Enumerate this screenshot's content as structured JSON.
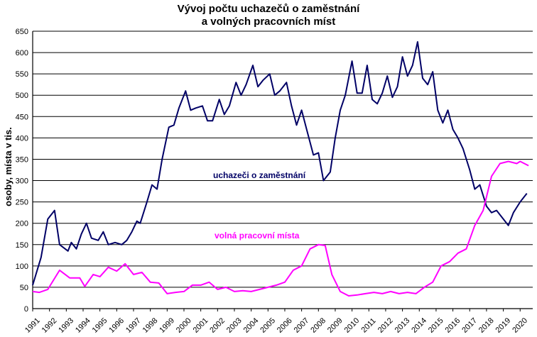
{
  "chart_data": {
    "type": "line",
    "title_line1": "Vývoj počtu uchazečů o zaměstnání",
    "title_line2": "a volných pracovních míst",
    "ylabel": "osoby, místa v tis.",
    "xlabel": "",
    "ylim": [
      0,
      650
    ],
    "yticks": [
      0,
      50,
      100,
      150,
      200,
      250,
      300,
      350,
      400,
      450,
      500,
      550,
      600,
      650
    ],
    "xlim": [
      1991,
      2020.75
    ],
    "years": [
      "1991",
      "1992",
      "1993",
      "1994",
      "1995",
      "1996",
      "1997",
      "1998",
      "1999",
      "2000",
      "2001",
      "2002",
      "2003",
      "2004",
      "2005",
      "2006",
      "2007",
      "2008",
      "2009",
      "2010",
      "2011",
      "2012",
      "2013",
      "2014",
      "2015",
      "2016",
      "2017",
      "2018",
      "2019",
      "2020"
    ],
    "grid": "horizontal",
    "series": [
      {
        "name": "uchazeči o zaměstnání",
        "color": "#000066",
        "points": [
          [
            1991,
            55
          ],
          [
            1991.5,
            120
          ],
          [
            1991.9,
            210
          ],
          [
            1992.3,
            230
          ],
          [
            1992.6,
            150
          ],
          [
            1993.1,
            135
          ],
          [
            1993.3,
            155
          ],
          [
            1993.6,
            140
          ],
          [
            1993.9,
            175
          ],
          [
            1994.2,
            200
          ],
          [
            1994.5,
            165
          ],
          [
            1994.9,
            160
          ],
          [
            1995.2,
            180
          ],
          [
            1995.5,
            150
          ],
          [
            1995.9,
            155
          ],
          [
            1996.3,
            150
          ],
          [
            1996.6,
            160
          ],
          [
            1996.9,
            180
          ],
          [
            1997.2,
            205
          ],
          [
            1997.4,
            200
          ],
          [
            1997.8,
            250
          ],
          [
            1998.1,
            290
          ],
          [
            1998.4,
            280
          ],
          [
            1998.7,
            350
          ],
          [
            1999.1,
            425
          ],
          [
            1999.4,
            430
          ],
          [
            1999.7,
            470
          ],
          [
            2000.1,
            510
          ],
          [
            2000.4,
            465
          ],
          [
            2000.7,
            470
          ],
          [
            2001.1,
            475
          ],
          [
            2001.4,
            440
          ],
          [
            2001.7,
            440
          ],
          [
            2002.1,
            490
          ],
          [
            2002.4,
            455
          ],
          [
            2002.7,
            475
          ],
          [
            2003.1,
            530
          ],
          [
            2003.4,
            500
          ],
          [
            2003.7,
            525
          ],
          [
            2004.1,
            570
          ],
          [
            2004.4,
            520
          ],
          [
            2004.7,
            535
          ],
          [
            2005.1,
            550
          ],
          [
            2005.4,
            500
          ],
          [
            2005.7,
            510
          ],
          [
            2006.1,
            530
          ],
          [
            2006.4,
            475
          ],
          [
            2006.7,
            430
          ],
          [
            2007.0,
            465
          ],
          [
            2007.3,
            420
          ],
          [
            2007.7,
            360
          ],
          [
            2008.0,
            365
          ],
          [
            2008.3,
            300
          ],
          [
            2008.7,
            320
          ],
          [
            2009.0,
            400
          ],
          [
            2009.3,
            465
          ],
          [
            2009.6,
            500
          ],
          [
            2010.0,
            580
          ],
          [
            2010.3,
            505
          ],
          [
            2010.6,
            505
          ],
          [
            2010.9,
            570
          ],
          [
            2011.2,
            490
          ],
          [
            2011.5,
            480
          ],
          [
            2011.8,
            505
          ],
          [
            2012.1,
            545
          ],
          [
            2012.4,
            495
          ],
          [
            2012.7,
            520
          ],
          [
            2013.0,
            590
          ],
          [
            2013.3,
            545
          ],
          [
            2013.6,
            570
          ],
          [
            2013.9,
            625
          ],
          [
            2014.2,
            540
          ],
          [
            2014.5,
            525
          ],
          [
            2014.8,
            555
          ],
          [
            2015.1,
            465
          ],
          [
            2015.4,
            435
          ],
          [
            2015.7,
            465
          ],
          [
            2016.0,
            420
          ],
          [
            2016.3,
            400
          ],
          [
            2016.6,
            375
          ],
          [
            2017.0,
            325
          ],
          [
            2017.3,
            280
          ],
          [
            2017.6,
            290
          ],
          [
            2018.0,
            240
          ],
          [
            2018.3,
            225
          ],
          [
            2018.6,
            230
          ],
          [
            2019.0,
            210
          ],
          [
            2019.3,
            195
          ],
          [
            2019.6,
            225
          ],
          [
            2020.0,
            250
          ],
          [
            2020.4,
            270
          ]
        ]
      },
      {
        "name": "volná pracovní místa",
        "color": "#ff00ff",
        "points": [
          [
            1991,
            40
          ],
          [
            1991.4,
            38
          ],
          [
            1991.9,
            45
          ],
          [
            1992.6,
            90
          ],
          [
            1993.2,
            72
          ],
          [
            1993.8,
            72
          ],
          [
            1994.1,
            52
          ],
          [
            1994.6,
            80
          ],
          [
            1995.0,
            75
          ],
          [
            1995.5,
            97
          ],
          [
            1996.0,
            88
          ],
          [
            1996.5,
            105
          ],
          [
            1997.0,
            80
          ],
          [
            1997.5,
            85
          ],
          [
            1998.0,
            62
          ],
          [
            1998.5,
            60
          ],
          [
            1999.0,
            35
          ],
          [
            1999.5,
            38
          ],
          [
            2000.0,
            40
          ],
          [
            2000.5,
            55
          ],
          [
            2001.0,
            55
          ],
          [
            2001.5,
            62
          ],
          [
            2002.0,
            45
          ],
          [
            2002.5,
            50
          ],
          [
            2003.0,
            40
          ],
          [
            2003.5,
            42
          ],
          [
            2004.0,
            40
          ],
          [
            2004.5,
            45
          ],
          [
            2005.0,
            50
          ],
          [
            2005.5,
            55
          ],
          [
            2006.0,
            62
          ],
          [
            2006.5,
            90
          ],
          [
            2007.0,
            100
          ],
          [
            2007.5,
            140
          ],
          [
            2008.0,
            150
          ],
          [
            2008.4,
            148
          ],
          [
            2008.8,
            80
          ],
          [
            2009.3,
            40
          ],
          [
            2009.8,
            30
          ],
          [
            2010.3,
            32
          ],
          [
            2010.8,
            35
          ],
          [
            2011.3,
            38
          ],
          [
            2011.8,
            35
          ],
          [
            2012.3,
            40
          ],
          [
            2012.8,
            35
          ],
          [
            2013.3,
            38
          ],
          [
            2013.8,
            35
          ],
          [
            2014.3,
            50
          ],
          [
            2014.8,
            62
          ],
          [
            2015.3,
            100
          ],
          [
            2015.8,
            110
          ],
          [
            2016.3,
            130
          ],
          [
            2016.8,
            140
          ],
          [
            2017.3,
            195
          ],
          [
            2017.8,
            230
          ],
          [
            2018.3,
            310
          ],
          [
            2018.8,
            340
          ],
          [
            2019.3,
            345
          ],
          [
            2019.8,
            340
          ],
          [
            2020.0,
            345
          ],
          [
            2020.5,
            335
          ]
        ]
      }
    ],
    "annotations": [
      {
        "text": "uchazeči o zaměstnání",
        "color": "#000066"
      },
      {
        "text": "volná pracovní místa",
        "color": "#ff00ff"
      }
    ]
  }
}
